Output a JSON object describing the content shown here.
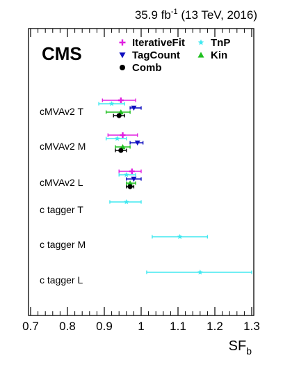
{
  "header": {
    "lumi_value": "35.9 fb",
    "lumi_exp": "-1",
    "lumi_rest": " (13 TeV, 2016)",
    "experiment": "CMS"
  },
  "chart_data": {
    "type": "scatter",
    "orientation": "horizontal-errorbars",
    "xlabel_main": "SF",
    "xlabel_sub": "b",
    "xlim": [
      0.7,
      1.3
    ],
    "x_ticks": [
      0.7,
      0.8,
      0.9,
      1.0,
      1.1,
      1.2,
      1.3
    ],
    "x_tick_labels": [
      "0.7",
      "0.8",
      "0.9",
      "1",
      "1.1",
      "1.2",
      "1.3"
    ],
    "categories": [
      "cMVAv2 T",
      "cMVAv2 M",
      "cMVAv2 L",
      "c tagger T",
      "c tagger M",
      "c tagger L"
    ],
    "legend": [
      {
        "name": "IterativeFit",
        "color": "#e020e0",
        "marker": "plus"
      },
      {
        "name": "TnP",
        "color": "#40e8f0",
        "marker": "star"
      },
      {
        "name": "TagCount",
        "color": "#1010c0",
        "marker": "triangle-down"
      },
      {
        "name": "Kin",
        "color": "#20c020",
        "marker": "triangle-up"
      },
      {
        "name": "Comb",
        "color": "#000000",
        "marker": "circle"
      }
    ],
    "series": [
      {
        "name": "IterativeFit",
        "color": "#e020e0",
        "marker": "plus",
        "points": [
          {
            "category": "cMVAv2 T",
            "x": 0.945,
            "xmin": 0.895,
            "xmax": 0.985
          },
          {
            "category": "cMVAv2 M",
            "x": 0.95,
            "xmin": 0.91,
            "xmax": 0.99
          },
          {
            "category": "cMVAv2 L",
            "x": 0.975,
            "xmin": 0.94,
            "xmax": 1.0
          }
        ]
      },
      {
        "name": "TnP",
        "color": "#40e8f0",
        "marker": "star",
        "points": [
          {
            "category": "cMVAv2 T",
            "x": 0.92,
            "xmin": 0.885,
            "xmax": 0.955
          },
          {
            "category": "cMVAv2 M",
            "x": 0.935,
            "xmin": 0.905,
            "xmax": 0.96
          },
          {
            "category": "cMVAv2 L",
            "x": 0.96,
            "xmin": 0.94,
            "xmax": 0.985
          },
          {
            "category": "c tagger T",
            "x": 0.96,
            "xmin": 0.915,
            "xmax": 1.0
          },
          {
            "category": "c tagger M",
            "x": 1.105,
            "xmin": 1.03,
            "xmax": 1.18
          },
          {
            "category": "c tagger L",
            "x": 1.16,
            "xmin": 1.015,
            "xmax": 1.3
          }
        ]
      },
      {
        "name": "TagCount",
        "color": "#1010c0",
        "marker": "triangle-down",
        "points": [
          {
            "category": "cMVAv2 T",
            "x": 0.98,
            "xmin": 0.97,
            "xmax": 1.0
          },
          {
            "category": "cMVAv2 M",
            "x": 0.99,
            "xmin": 0.97,
            "xmax": 1.005
          },
          {
            "category": "cMVAv2 L",
            "x": 0.98,
            "xmin": 0.96,
            "xmax": 1.0
          }
        ]
      },
      {
        "name": "Kin",
        "color": "#20c020",
        "marker": "triangle-up",
        "points": [
          {
            "category": "cMVAv2 T",
            "x": 0.945,
            "xmin": 0.905,
            "xmax": 0.97
          },
          {
            "category": "cMVAv2 M",
            "x": 0.95,
            "xmin": 0.93,
            "xmax": 0.97
          },
          {
            "category": "cMVAv2 L",
            "x": 0.97,
            "xmin": 0.96,
            "xmax": 0.985
          }
        ]
      },
      {
        "name": "Comb",
        "color": "#000000",
        "marker": "circle",
        "points": [
          {
            "category": "cMVAv2 T",
            "x": 0.94,
            "xmin": 0.925,
            "xmax": 0.955
          },
          {
            "category": "cMVAv2 M",
            "x": 0.945,
            "xmin": 0.93,
            "xmax": 0.96
          },
          {
            "category": "cMVAv2 L",
            "x": 0.97,
            "xmin": 0.96,
            "xmax": 0.98
          }
        ]
      }
    ]
  }
}
